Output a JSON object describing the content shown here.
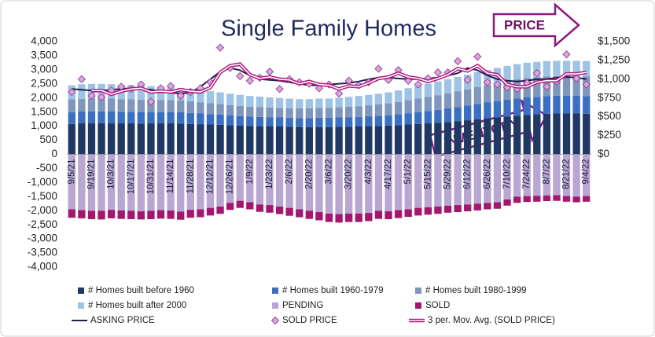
{
  "chart_data": {
    "type": "bar",
    "title": "Single Family Homes",
    "annotations": [
      "PRICE",
      "INVENTORY"
    ],
    "categories": [
      "9/5/21",
      null,
      "9/19/21",
      null,
      "10/3/21",
      null,
      "10/17/21",
      null,
      "10/31/21",
      null,
      "11/14/21",
      null,
      "11/28/21",
      null,
      "12/12/21",
      null,
      "12/26/21",
      null,
      "1/9/22",
      null,
      "1/23/22",
      null,
      "2/6/22",
      null,
      "2/20/22",
      null,
      "3/6/22",
      null,
      "3/20/22",
      null,
      "4/3/22",
      null,
      "4/17/22",
      null,
      "5/1/22",
      null,
      "5/15/22",
      null,
      "5/29/22",
      null,
      "6/12/22",
      null,
      "6/26/22",
      null,
      "7/10/22",
      null,
      "7/24/22",
      null,
      "8/7/22",
      null,
      "8/21/22",
      null,
      "9/4/22"
    ],
    "ylim": [
      -4000,
      4000
    ],
    "yticks": [
      {
        "value": -4000,
        "label": "-4,000"
      },
      {
        "value": -3500,
        "label": "-3,500"
      },
      {
        "value": -3000,
        "label": "-3,000"
      },
      {
        "value": -2500,
        "label": "-2,500"
      },
      {
        "value": -2000,
        "label": "-2,000"
      },
      {
        "value": -1500,
        "label": "-1,500"
      },
      {
        "value": -1000,
        "label": "-1,000"
      },
      -500,
      0,
      500,
      {
        "value": 1000,
        "label": "1,000"
      },
      {
        "value": 1500,
        "label": "1,500"
      },
      {
        "value": 2000,
        "label": "2,000"
      },
      {
        "value": 2500,
        "label": "2,500"
      },
      {
        "value": 3000,
        "label": "3,000"
      },
      {
        "value": 3500,
        "label": "3,500"
      },
      {
        "value": 4000,
        "label": "4,000"
      }
    ],
    "y2lim": [
      -1500,
      1500
    ],
    "y2ticks": [
      {
        "value": 0,
        "label": "$0"
      },
      {
        "value": 250,
        "label": "$250"
      },
      {
        "value": 500,
        "label": "$500"
      },
      {
        "value": 750,
        "label": "$750"
      },
      {
        "value": 1000,
        "label": "$1,000"
      },
      {
        "value": 1250,
        "label": "$1,250"
      },
      {
        "value": 1500,
        "label": "$1,500"
      }
    ],
    "grid": false,
    "series": [
      {
        "name": "# Homes built before 1960",
        "type": "bar",
        "color": "#1f3864",
        "values": [
          1080,
          1100,
          1100,
          1100,
          1100,
          1100,
          1100,
          1090,
          1100,
          1100,
          1100,
          1090,
          1080,
          1070,
          1060,
          1050,
          1030,
          1020,
          1010,
          1000,
          1000,
          990,
          980,
          970,
          970,
          970,
          970,
          980,
          980,
          990,
          1000,
          1010,
          1020,
          1040,
          1060,
          1080,
          1100,
          1120,
          1150,
          1180,
          1210,
          1250,
          1280,
          1310,
          1340,
          1370,
          1400,
          1420,
          1440,
          1450,
          1450,
          1450,
          1440
        ]
      },
      {
        "name": "# Homes built 1960-1979",
        "type": "bar",
        "color": "#3b6fc2",
        "values": [
          420,
          420,
          420,
          420,
          420,
          410,
          410,
          410,
          400,
          400,
          400,
          400,
          390,
          380,
          370,
          360,
          350,
          340,
          330,
          330,
          320,
          320,
          320,
          320,
          320,
          330,
          330,
          330,
          340,
          340,
          350,
          360,
          370,
          380,
          400,
          420,
          440,
          460,
          480,
          500,
          520,
          540,
          560,
          580,
          600,
          610,
          620,
          620,
          630,
          630,
          630,
          630,
          630
        ]
      },
      {
        "name": "# Homes built 1980-1999",
        "type": "bar",
        "color": "#7f96bd",
        "values": [
          450,
          450,
          460,
          460,
          460,
          450,
          450,
          440,
          440,
          430,
          430,
          420,
          410,
          400,
          390,
          380,
          370,
          360,
          350,
          350,
          340,
          340,
          340,
          340,
          340,
          350,
          350,
          360,
          370,
          380,
          390,
          400,
          420,
          440,
          460,
          480,
          500,
          520,
          540,
          560,
          580,
          600,
          620,
          640,
          660,
          680,
          690,
          700,
          700,
          700,
          700,
          700,
          700
        ]
      },
      {
        "name": "# Homes built after 2000",
        "type": "bar",
        "color": "#9dc3e6",
        "values": [
          500,
          520,
          520,
          520,
          510,
          500,
          500,
          490,
          480,
          470,
          460,
          450,
          440,
          430,
          420,
          410,
          400,
          390,
          380,
          370,
          360,
          350,
          340,
          330,
          330,
          330,
          330,
          340,
          350,
          360,
          370,
          380,
          390,
          410,
          430,
          450,
          470,
          490,
          500,
          510,
          520,
          530,
          540,
          540,
          540,
          540,
          540,
          540,
          540,
          540,
          540,
          540,
          540
        ]
      },
      {
        "name": "PENDING",
        "type": "bar",
        "color": "#b9a6d3",
        "values": [
          -1950,
          -1980,
          -2000,
          -2000,
          -1970,
          -1990,
          -2000,
          -2020,
          -2000,
          -1980,
          -1990,
          -2030,
          -1970,
          -1950,
          -1900,
          -1850,
          -1720,
          -1650,
          -1700,
          -1780,
          -1800,
          -1850,
          -1900,
          -1950,
          -2000,
          -2050,
          -2100,
          -2120,
          -2100,
          -2100,
          -2080,
          -2000,
          -2020,
          -1980,
          -1950,
          -1900,
          -1880,
          -1850,
          -1820,
          -1800,
          -1780,
          -1750,
          -1720,
          -1700,
          -1600,
          -1500,
          -1480,
          -1470,
          -1460,
          -1450,
          -1480,
          -1500,
          -1480
        ]
      },
      {
        "name": "SOLD",
        "type": "bar",
        "color": "#a3186e",
        "values": [
          -300,
          -290,
          -300,
          -310,
          -300,
          -300,
          -300,
          -290,
          -300,
          -300,
          -300,
          -290,
          -280,
          -280,
          -270,
          -260,
          -250,
          -250,
          -250,
          -260,
          -270,
          -270,
          -280,
          -280,
          -290,
          -290,
          -300,
          -300,
          -300,
          -300,
          -290,
          -290,
          -280,
          -280,
          -270,
          -270,
          -260,
          -260,
          -250,
          -250,
          -240,
          -240,
          -230,
          -230,
          -220,
          -220,
          -210,
          -210,
          -200,
          -200,
          -200,
          -200,
          -200
        ]
      },
      {
        "name": "ASKING PRICE",
        "type": "line",
        "axis": "y2",
        "color": "#1f1f4d",
        "values": [
          870,
          860,
          850,
          850,
          860,
          870,
          880,
          870,
          860,
          840,
          820,
          810,
          820,
          900,
          1000,
          1100,
          1150,
          1120,
          1050,
          1000,
          990,
          980,
          960,
          940,
          920,
          920,
          930,
          940,
          950,
          970,
          1000,
          1020,
          1020,
          1010,
          1000,
          1000,
          1010,
          1020,
          1050,
          1080,
          1150,
          1120,
          1050,
          1000,
          980,
          970,
          980,
          1000,
          1000,
          1020,
          1030,
          1020,
          1000
        ]
      },
      {
        "name": "SOLD PRICE",
        "type": "scatter",
        "axis": "y2",
        "color": "#d9a6e0",
        "values": [
          830,
          1000,
          780,
          760,
          850,
          900,
          870,
          930,
          700,
          880,
          910,
          780,
          830,
          880,
          960,
          1420,
          1150,
          1040,
          980,
          1020,
          1100,
          870,
          1000,
          960,
          940,
          880,
          930,
          810,
          980,
          920,
          960,
          1140,
          990,
          1120,
          980,
          930,
          1010,
          1090,
          1090,
          1240,
          990,
          1300,
          960,
          930,
          890,
          870,
          950,
          1080,
          900,
          970,
          1330,
          1010,
          930
        ]
      },
      {
        "name": "3 per. Mov. Avg. (SOLD PRICE)",
        "type": "line",
        "axis": "y2",
        "color": "#b0157a",
        "double": true,
        "values": [
          null,
          null,
          850,
          850,
          800,
          840,
          870,
          880,
          830,
          840,
          830,
          860,
          840,
          830,
          890,
          1090,
          1180,
          1200,
          1060,
          1010,
          1030,
          1000,
          990,
          940,
          970,
          930,
          920,
          870,
          910,
          900,
          950,
          1010,
          1030,
          1080,
          1030,
          1010,
          970,
          1010,
          1060,
          1140,
          1110,
          1180,
          1080,
          1060,
          930,
          900,
          900,
          960,
          980,
          980,
          1070,
          1070,
          1090
        ]
      }
    ]
  }
}
